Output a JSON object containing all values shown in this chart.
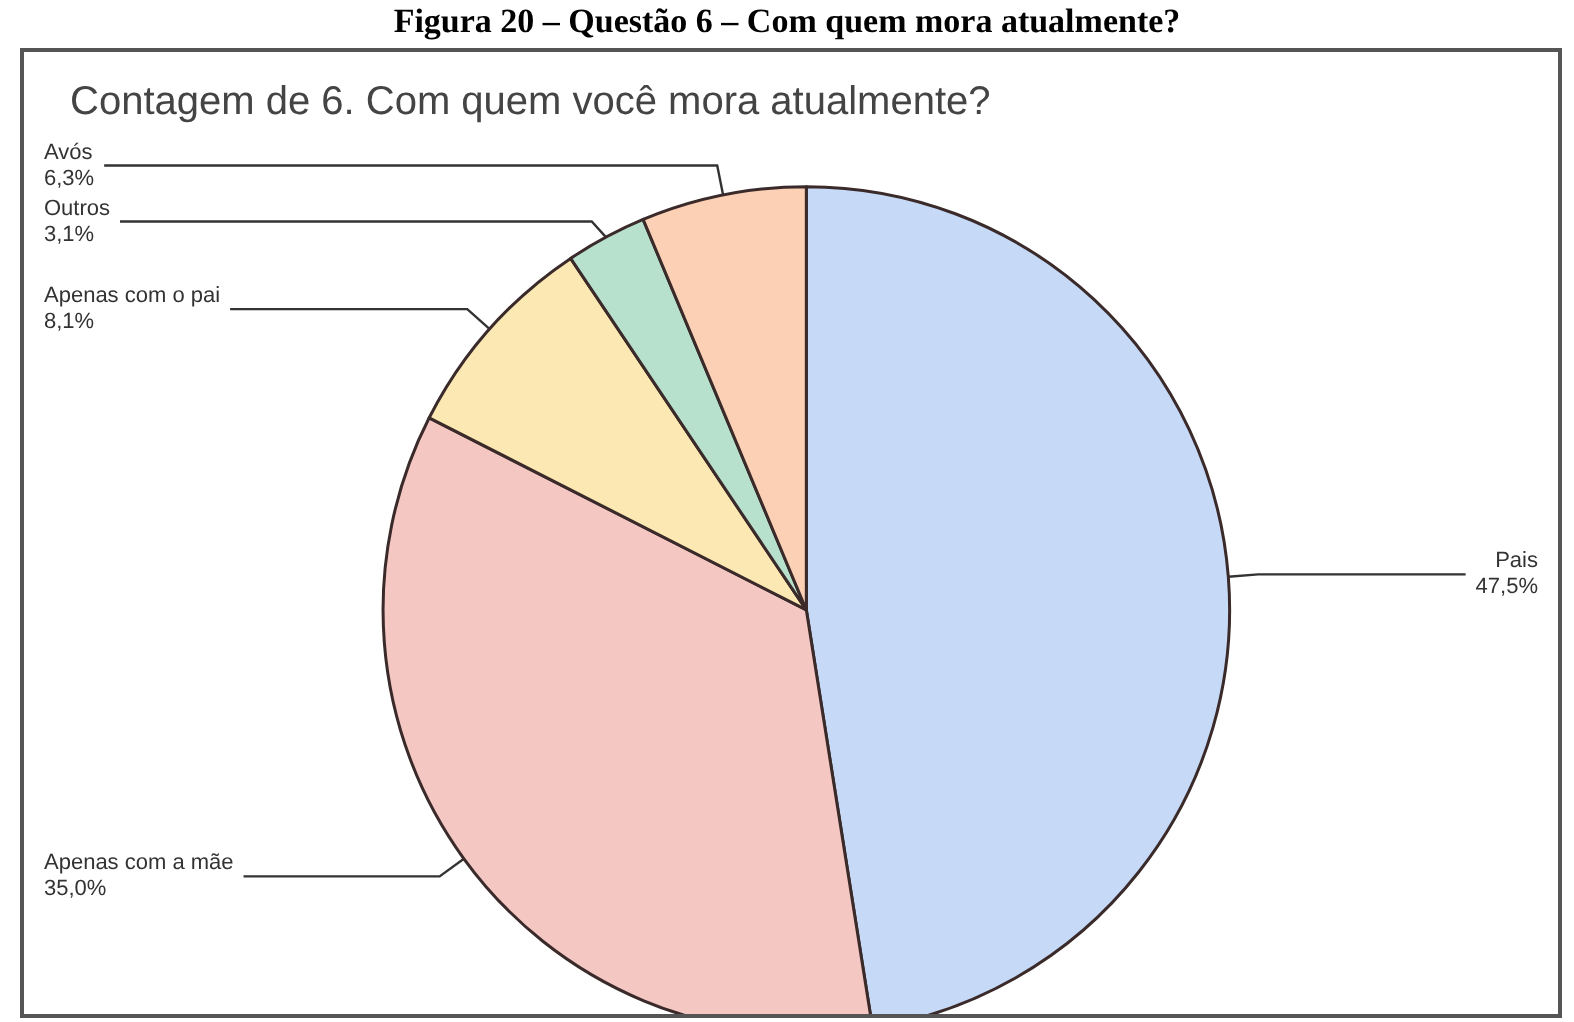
{
  "chart_data": {
    "type": "pie",
    "title": "Figura 20 – Questão 6 – Com quem mora atualmente?",
    "subtitle": "Contagem de 6. Com quem você mora atualmente?",
    "categories": [
      "Pais",
      "Apenas com a mãe",
      "Apenas com o pai",
      "Outros",
      "Avós"
    ],
    "values": [
      47.5,
      35.0,
      8.1,
      3.1,
      6.3
    ],
    "value_labels": [
      "47,5%",
      "35,0%",
      "8,1%",
      "3,1%",
      "6,3%"
    ],
    "colors": [
      "#c6d9f7",
      "#f4c7c3",
      "#fce8b2",
      "#b7e1cd",
      "#fcd0b4"
    ],
    "legend": false
  }
}
